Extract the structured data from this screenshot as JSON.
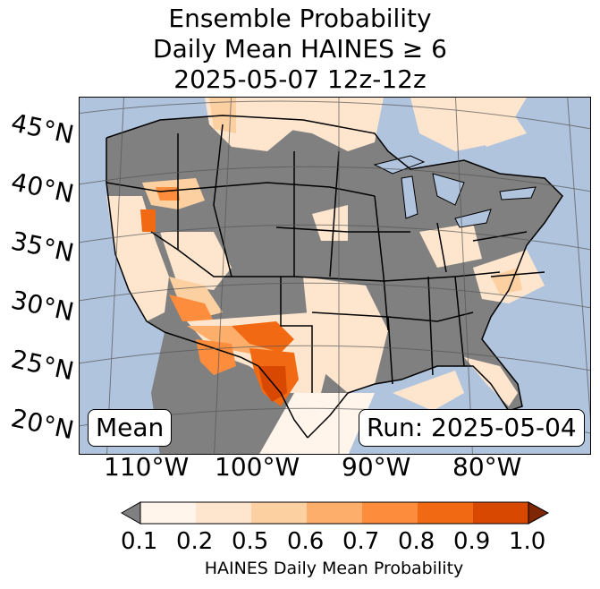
{
  "title": {
    "line1": "Ensemble Probability",
    "line2": "Daily Mean HAINES ≥ 6",
    "line3": "2025-05-07 12z-12z"
  },
  "map": {
    "lat_labels": [
      "45°N",
      "40°N",
      "35°N",
      "30°N",
      "25°N",
      "20°N"
    ],
    "lon_labels": [
      "110°W",
      "100°W",
      "90°W",
      "80°W"
    ],
    "stat_label": "Mean",
    "run_label": "Run: 2025-05-04",
    "colors": {
      "ocean": "#b0c4de",
      "no_data": "#808080",
      "border": "#000000"
    }
  },
  "colorbar": {
    "title": "HAINES Daily Mean Probability",
    "ticks": [
      "0.1",
      "0.2",
      "0.5",
      "0.6",
      "0.7",
      "0.8",
      "0.9",
      "1.0"
    ],
    "colors": [
      "#fff5eb",
      "#fee6ce",
      "#fdd0a2",
      "#fdae6b",
      "#fd8d3c",
      "#f16913",
      "#d94801",
      "#a63603"
    ],
    "under_color": "#808080",
    "over_color": "#7f2704"
  }
}
